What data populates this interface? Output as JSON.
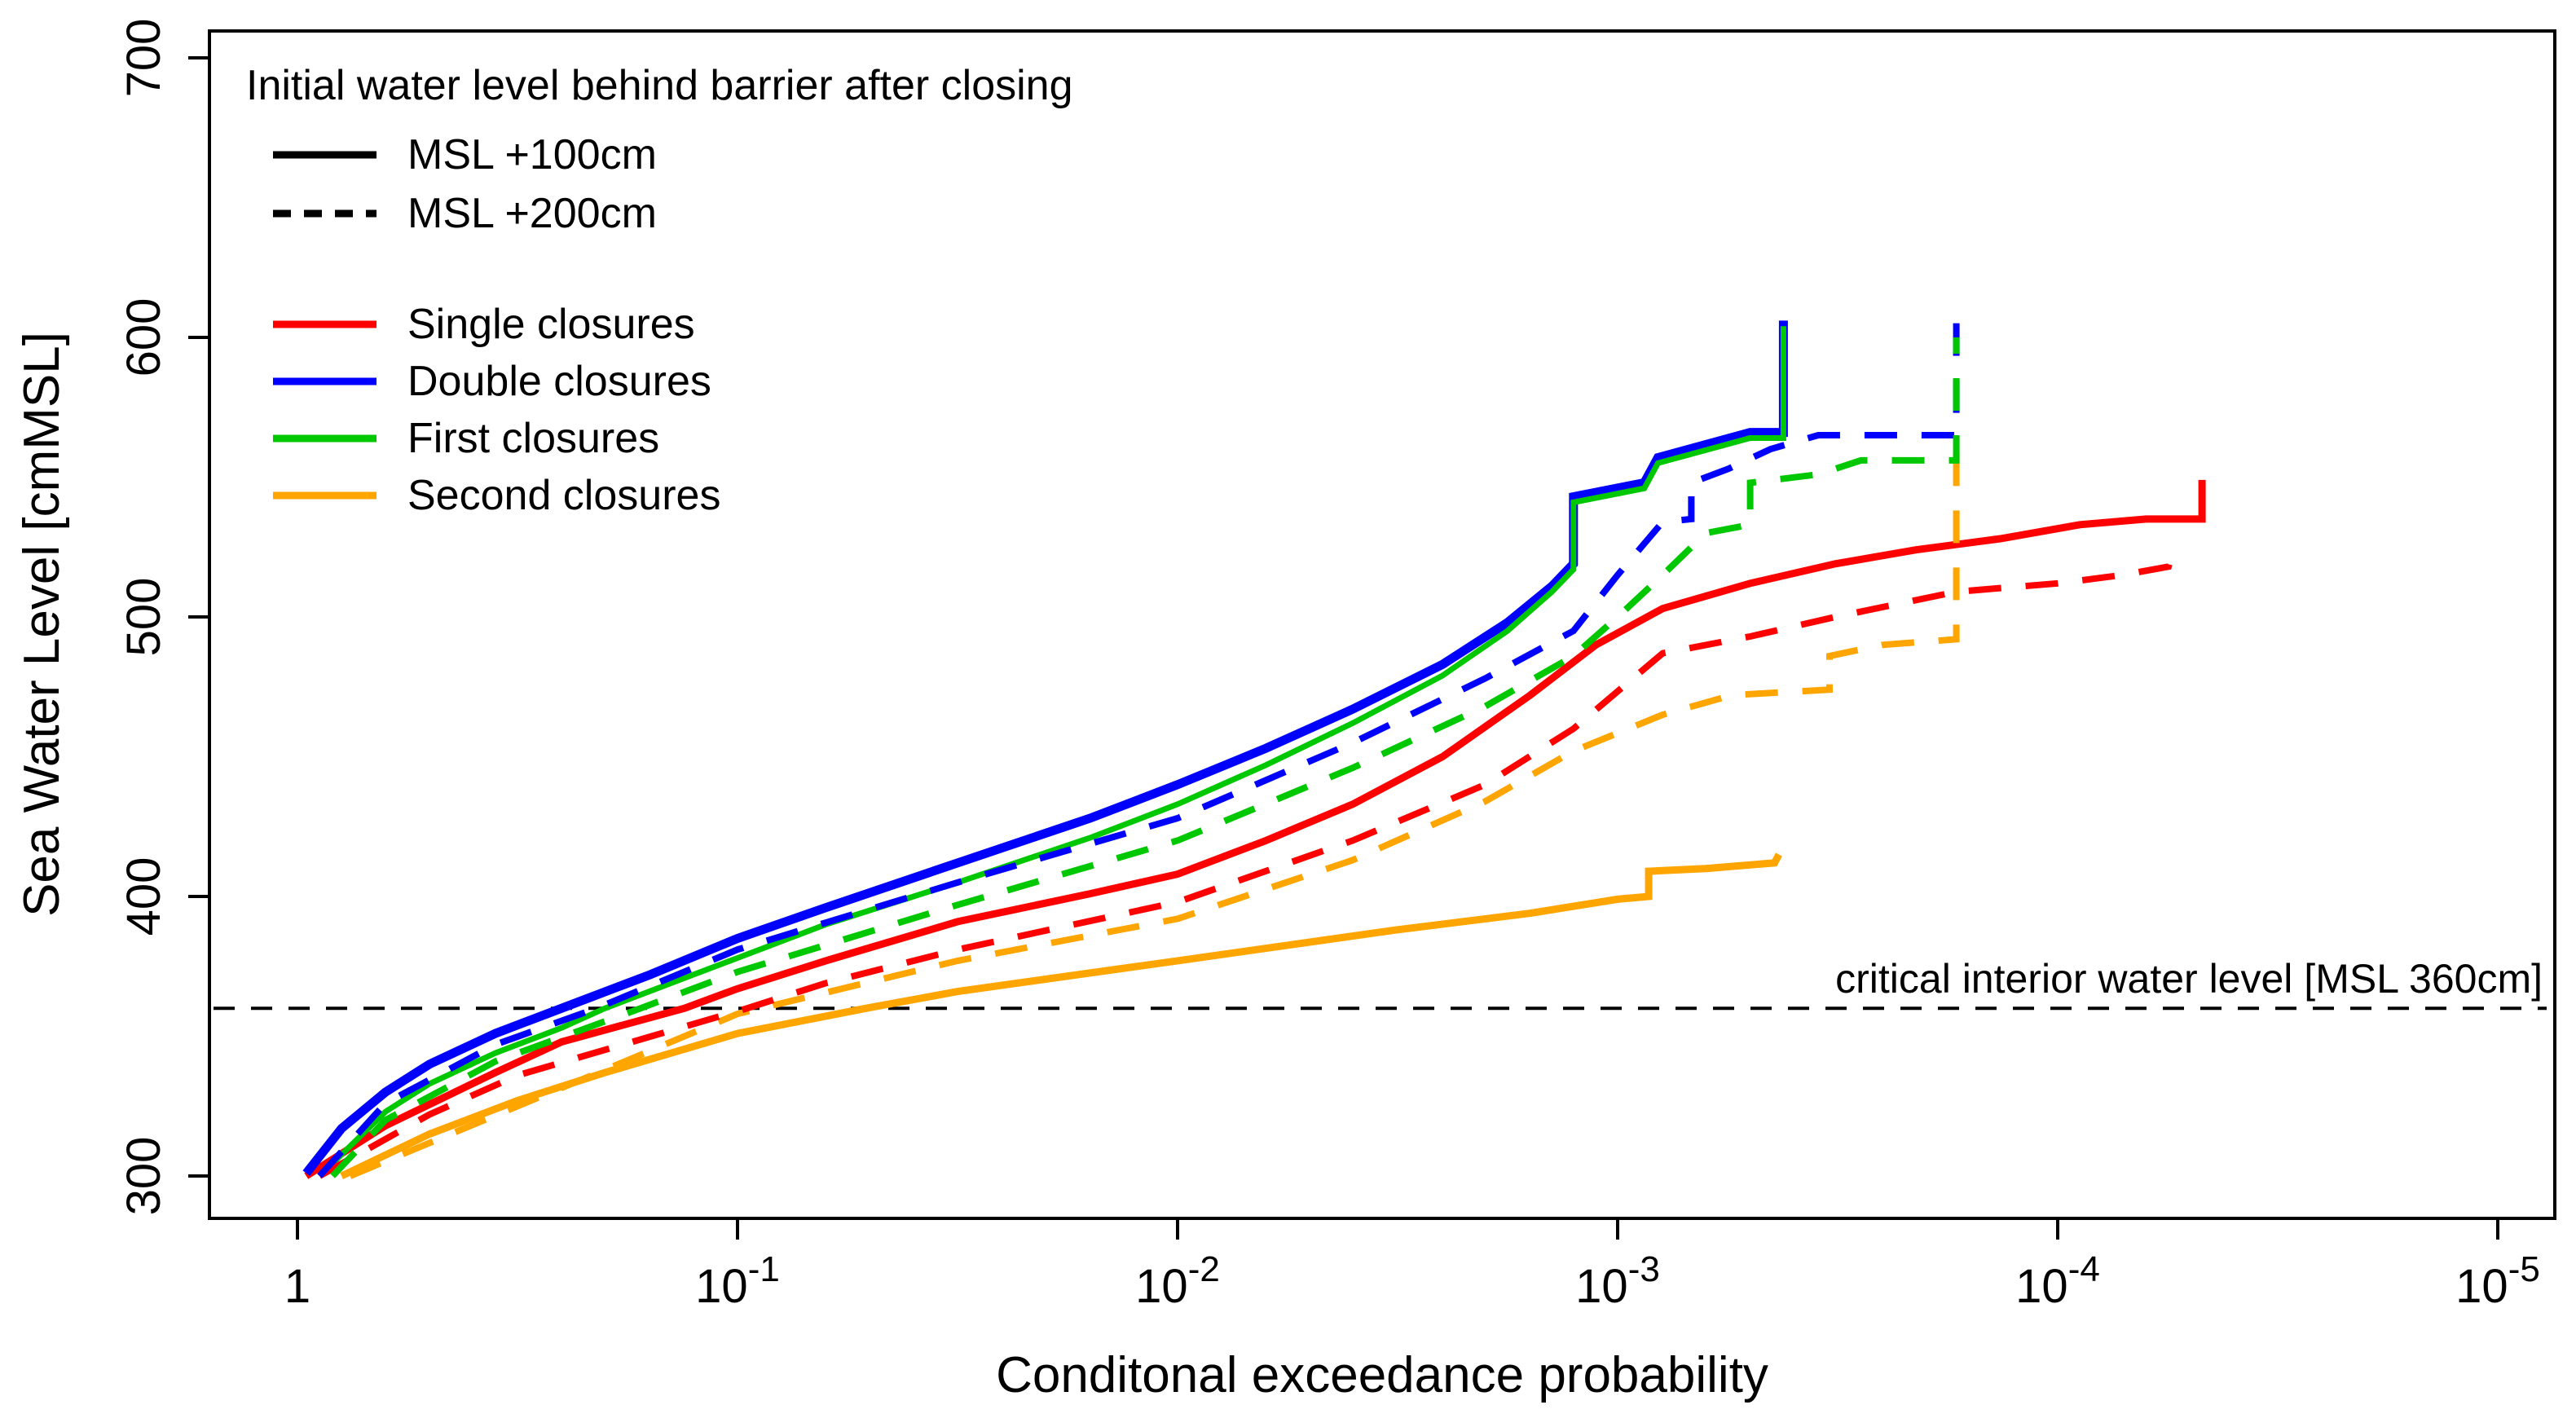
{
  "chart_data": {
    "type": "line",
    "title": "",
    "xlabel": "Conditonal exceedance probability",
    "ylabel": "Sea Water Level [cmMSL]",
    "x_scale": "log10-reversed",
    "xlim": [
      1.585,
      6.2e-06
    ],
    "ylim": [
      285,
      716
    ],
    "grid": false,
    "x_ticks": [
      {
        "label": "1",
        "exponent": null,
        "p": 1
      },
      {
        "label": "10",
        "exponent": "-1",
        "p": 0.1
      },
      {
        "label": "10",
        "exponent": "-2",
        "p": 0.01
      },
      {
        "label": "10",
        "exponent": "-3",
        "p": 0.001
      },
      {
        "label": "10",
        "exponent": "-4",
        "p": 0.0001
      },
      {
        "label": "10",
        "exponent": "-5",
        "p": 1e-05
      }
    ],
    "y_ticks": [
      300,
      400,
      500,
      600,
      700
    ],
    "annotation": {
      "text": "critical interior water level [MSL 360cm]",
      "value": 360,
      "line_style": "dashed",
      "line_color": "#000000"
    },
    "legend": {
      "title": "Initial water level behind barrier after closing",
      "position": "top-left",
      "linestyles": [
        {
          "label": "MSL +100cm",
          "style": "solid"
        },
        {
          "label": "MSL +200cm",
          "style": "dashed"
        }
      ],
      "entries": [
        {
          "label": "Single closures",
          "color": "#FF0000"
        },
        {
          "label": "Double closures",
          "color": "#0000FF"
        },
        {
          "label": "First closures",
          "color": "#00C800"
        },
        {
          "label": "Second closures",
          "color": "#FFA500"
        }
      ]
    },
    "series": [
      {
        "name": "Second closures",
        "scenario": "MSL +100cm",
        "color": "#FFA500",
        "style": "solid",
        "width": 9,
        "points": [
          [
            0.794,
            300
          ],
          [
            0.501,
            315
          ],
          [
            0.316,
            327
          ],
          [
            0.2,
            337
          ],
          [
            0.1,
            351
          ],
          [
            0.051,
            360
          ],
          [
            0.0316,
            366
          ],
          [
            0.01,
            377
          ],
          [
            0.0032,
            388
          ],
          [
            0.00158,
            394
          ],
          [
            0.001,
            399
          ],
          [
            0.00085,
            400
          ],
          [
            0.00085,
            409
          ],
          [
            0.00063,
            410
          ],
          [
            0.00044,
            412
          ],
          [
            0.00043,
            415
          ]
        ]
      },
      {
        "name": "Single closures",
        "scenario": "MSL +100cm",
        "color": "#FF0000",
        "style": "solid",
        "width": 9,
        "points": [
          [
            0.955,
            300
          ],
          [
            0.631,
            318
          ],
          [
            0.355,
            337
          ],
          [
            0.251,
            348
          ],
          [
            0.132,
            360
          ],
          [
            0.1,
            367
          ],
          [
            0.063,
            377
          ],
          [
            0.0316,
            391
          ],
          [
            0.0158,
            401
          ],
          [
            0.01,
            408
          ],
          [
            0.0063,
            420
          ],
          [
            0.004,
            433
          ],
          [
            0.0025,
            450
          ],
          [
            0.00158,
            472
          ],
          [
            0.00112,
            490
          ],
          [
            0.00079,
            503
          ],
          [
            0.0005,
            512
          ],
          [
            0.00032,
            519
          ],
          [
            0.00021,
            524
          ],
          [
            0.000135,
            528
          ],
          [
            8.9e-05,
            533
          ],
          [
            6.3e-05,
            535
          ],
          [
            4.7e-05,
            535
          ],
          [
            4.7e-05,
            549
          ]
        ]
      },
      {
        "name": "Double closures",
        "scenario": "MSL +100cm",
        "color": "#0000FF",
        "style": "solid",
        "width": 11,
        "points": [
          [
            0.955,
            301
          ],
          [
            0.794,
            317
          ],
          [
            0.631,
            330
          ],
          [
            0.501,
            340
          ],
          [
            0.355,
            351
          ],
          [
            0.251,
            360
          ],
          [
            0.158,
            372
          ],
          [
            0.1,
            385
          ],
          [
            0.063,
            396
          ],
          [
            0.0316,
            412
          ],
          [
            0.0158,
            428
          ],
          [
            0.01,
            440
          ],
          [
            0.0063,
            453
          ],
          [
            0.004,
            467
          ],
          [
            0.0025,
            483
          ],
          [
            0.00178,
            498
          ],
          [
            0.00141,
            511
          ],
          [
            0.00126,
            519
          ],
          [
            0.00126,
            543
          ],
          [
            0.00087,
            548
          ],
          [
            0.00081,
            557
          ],
          [
            0.0005,
            566
          ],
          [
            0.00042,
            566
          ],
          [
            0.00042,
            606
          ]
        ]
      },
      {
        "name": "First closures",
        "scenario": "MSL +100cm",
        "color": "#00C800",
        "style": "solid",
        "width": 7,
        "points": [
          [
            0.891,
            300
          ],
          [
            0.631,
            323
          ],
          [
            0.501,
            333
          ],
          [
            0.355,
            344
          ],
          [
            0.251,
            353
          ],
          [
            0.2,
            360
          ],
          [
            0.126,
            372
          ],
          [
            0.1,
            378
          ],
          [
            0.063,
            390
          ],
          [
            0.0316,
            405
          ],
          [
            0.0158,
            421
          ],
          [
            0.01,
            433
          ],
          [
            0.0063,
            447
          ],
          [
            0.004,
            462
          ],
          [
            0.0025,
            479
          ],
          [
            0.00178,
            495
          ],
          [
            0.00141,
            509
          ],
          [
            0.00126,
            517
          ],
          [
            0.00126,
            541
          ],
          [
            0.00087,
            546
          ],
          [
            0.00081,
            555
          ],
          [
            0.0005,
            564
          ],
          [
            0.00042,
            564
          ],
          [
            0.00042,
            604
          ]
        ]
      },
      {
        "name": "Second closures",
        "scenario": "MSL +200cm",
        "color": "#FFA500",
        "style": "dashed",
        "width": 8,
        "points": [
          [
            0.759,
            300
          ],
          [
            0.316,
            325
          ],
          [
            0.2,
            338
          ],
          [
            0.1,
            358
          ],
          [
            0.0316,
            377
          ],
          [
            0.01,
            392
          ],
          [
            0.004,
            413
          ],
          [
            0.002,
            434
          ],
          [
            0.00126,
            452
          ],
          [
            0.00079,
            465
          ],
          [
            0.00055,
            472
          ],
          [
            0.00033,
            474
          ],
          [
            0.00033,
            486
          ],
          [
            0.00025,
            490
          ],
          [
            0.00017,
            492
          ],
          [
            0.00017,
            562
          ]
        ]
      },
      {
        "name": "Single closures",
        "scenario": "MSL +200cm",
        "color": "#FF0000",
        "style": "dashed",
        "width": 8,
        "points": [
          [
            0.891,
            300
          ],
          [
            0.501,
            322
          ],
          [
            0.316,
            336
          ],
          [
            0.095,
            360
          ],
          [
            0.063,
            369
          ],
          [
            0.0316,
            381
          ],
          [
            0.01,
            398
          ],
          [
            0.004,
            420
          ],
          [
            0.002,
            440
          ],
          [
            0.00126,
            460
          ],
          [
            0.00079,
            487
          ],
          [
            0.0005,
            493
          ],
          [
            0.00032,
            500
          ],
          [
            0.00017,
            509
          ],
          [
            0.0001,
            512
          ],
          [
            7.1e-05,
            515
          ],
          [
            5.6e-05,
            518
          ],
          [
            5.5e-05,
            523
          ]
        ]
      },
      {
        "name": "Double closures",
        "scenario": "MSL +200cm",
        "color": "#0000FF",
        "style": "dashed",
        "width": 8,
        "points": [
          [
            0.891,
            300
          ],
          [
            0.631,
            326
          ],
          [
            0.355,
            347
          ],
          [
            0.209,
            360
          ],
          [
            0.1,
            381
          ],
          [
            0.0316,
            405
          ],
          [
            0.01,
            428
          ],
          [
            0.004,
            455
          ],
          [
            0.002,
            478
          ],
          [
            0.00126,
            495
          ],
          [
            0.001,
            515
          ],
          [
            0.00079,
            534
          ],
          [
            0.00068,
            535
          ],
          [
            0.00068,
            548
          ],
          [
            0.00056,
            553
          ],
          [
            0.00045,
            560
          ],
          [
            0.00035,
            565
          ],
          [
            0.00017,
            565
          ],
          [
            0.00017,
            606
          ]
        ]
      },
      {
        "name": "First closures",
        "scenario": "MSL +200cm",
        "color": "#00C800",
        "style": "dashed",
        "width": 8,
        "points": [
          [
            0.832,
            300
          ],
          [
            0.631,
            320
          ],
          [
            0.355,
            341
          ],
          [
            0.166,
            360
          ],
          [
            0.1,
            373
          ],
          [
            0.0316,
            397
          ],
          [
            0.01,
            420
          ],
          [
            0.004,
            446
          ],
          [
            0.002,
            468
          ],
          [
            0.00126,
            486
          ],
          [
            0.001,
            500
          ],
          [
            0.00079,
            515
          ],
          [
            0.00063,
            530
          ],
          [
            0.0005,
            533
          ],
          [
            0.0005,
            548
          ],
          [
            0.00035,
            551
          ],
          [
            0.00028,
            556
          ],
          [
            0.00017,
            556
          ],
          [
            0.00017,
            600
          ]
        ]
      }
    ]
  }
}
